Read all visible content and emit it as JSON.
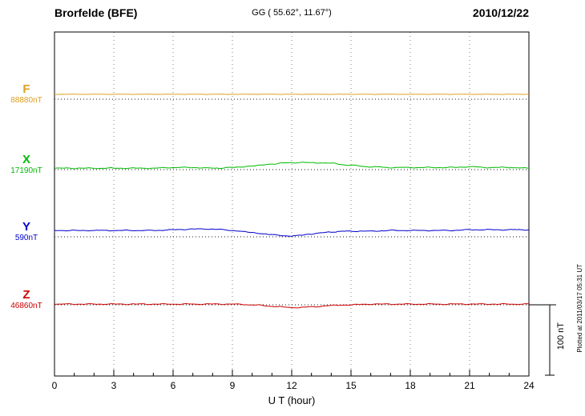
{
  "header": {
    "station": "Brorfelde (BFE)",
    "coordinates": "GG ( 55.62°,  11.67°)",
    "date": "2010/12/22"
  },
  "chart_data": {
    "type": "line",
    "title": "Brorfelde (BFE) magnetogram 2010/12/22",
    "xlabel": "U T (hour)",
    "x_unit": "hour",
    "x_range": [
      0,
      24
    ],
    "x_ticks": [
      0,
      3,
      6,
      9,
      12,
      15,
      18,
      21,
      24
    ],
    "grid": "vertical dotted gridlines every 3 hours",
    "y_unit": "nT (deviation from component baseline)",
    "scale_bar": {
      "label": "100 nT",
      "value_nT": 100
    },
    "plotted_note": "Plotted at 2011/03/17 05:31 UT",
    "series": [
      {
        "name": "F",
        "baseline_label": "88880nT",
        "baseline_nT": 88880,
        "color": "#DFA020",
        "values_nT": [
          7,
          7,
          7,
          7,
          7,
          7,
          7,
          7,
          7,
          7,
          7,
          7,
          7,
          7,
          7,
          7,
          7,
          7,
          7,
          7,
          7,
          7,
          7,
          7,
          7
        ]
      },
      {
        "name": "X",
        "baseline_label": "17190nT",
        "baseline_nT": 17190,
        "color": "#00BB00",
        "values_nT": [
          2,
          2,
          2,
          2,
          2,
          2,
          3,
          3,
          2,
          3,
          5,
          8,
          10,
          10,
          9,
          6,
          4,
          3,
          3,
          3,
          3,
          4,
          3,
          3,
          2
        ]
      },
      {
        "name": "Y",
        "baseline_label": "590nT",
        "baseline_nT": 590,
        "color": "#0000CC",
        "values_nT": [
          9,
          9,
          9,
          9,
          9,
          9,
          10,
          11,
          11,
          9,
          6,
          3,
          1,
          4,
          7,
          8,
          8,
          9,
          9,
          9,
          9,
          10,
          10,
          10,
          10
        ]
      },
      {
        "name": "Z",
        "baseline_label": "46860nT",
        "baseline_nT": 46860,
        "color": "#CC0000",
        "values_nT": [
          1,
          1,
          1,
          1,
          1,
          1,
          1,
          1,
          1,
          1,
          0,
          -2,
          -4,
          -3,
          -1,
          0,
          1,
          1,
          1,
          1,
          1,
          1,
          1,
          1,
          1
        ]
      }
    ]
  }
}
